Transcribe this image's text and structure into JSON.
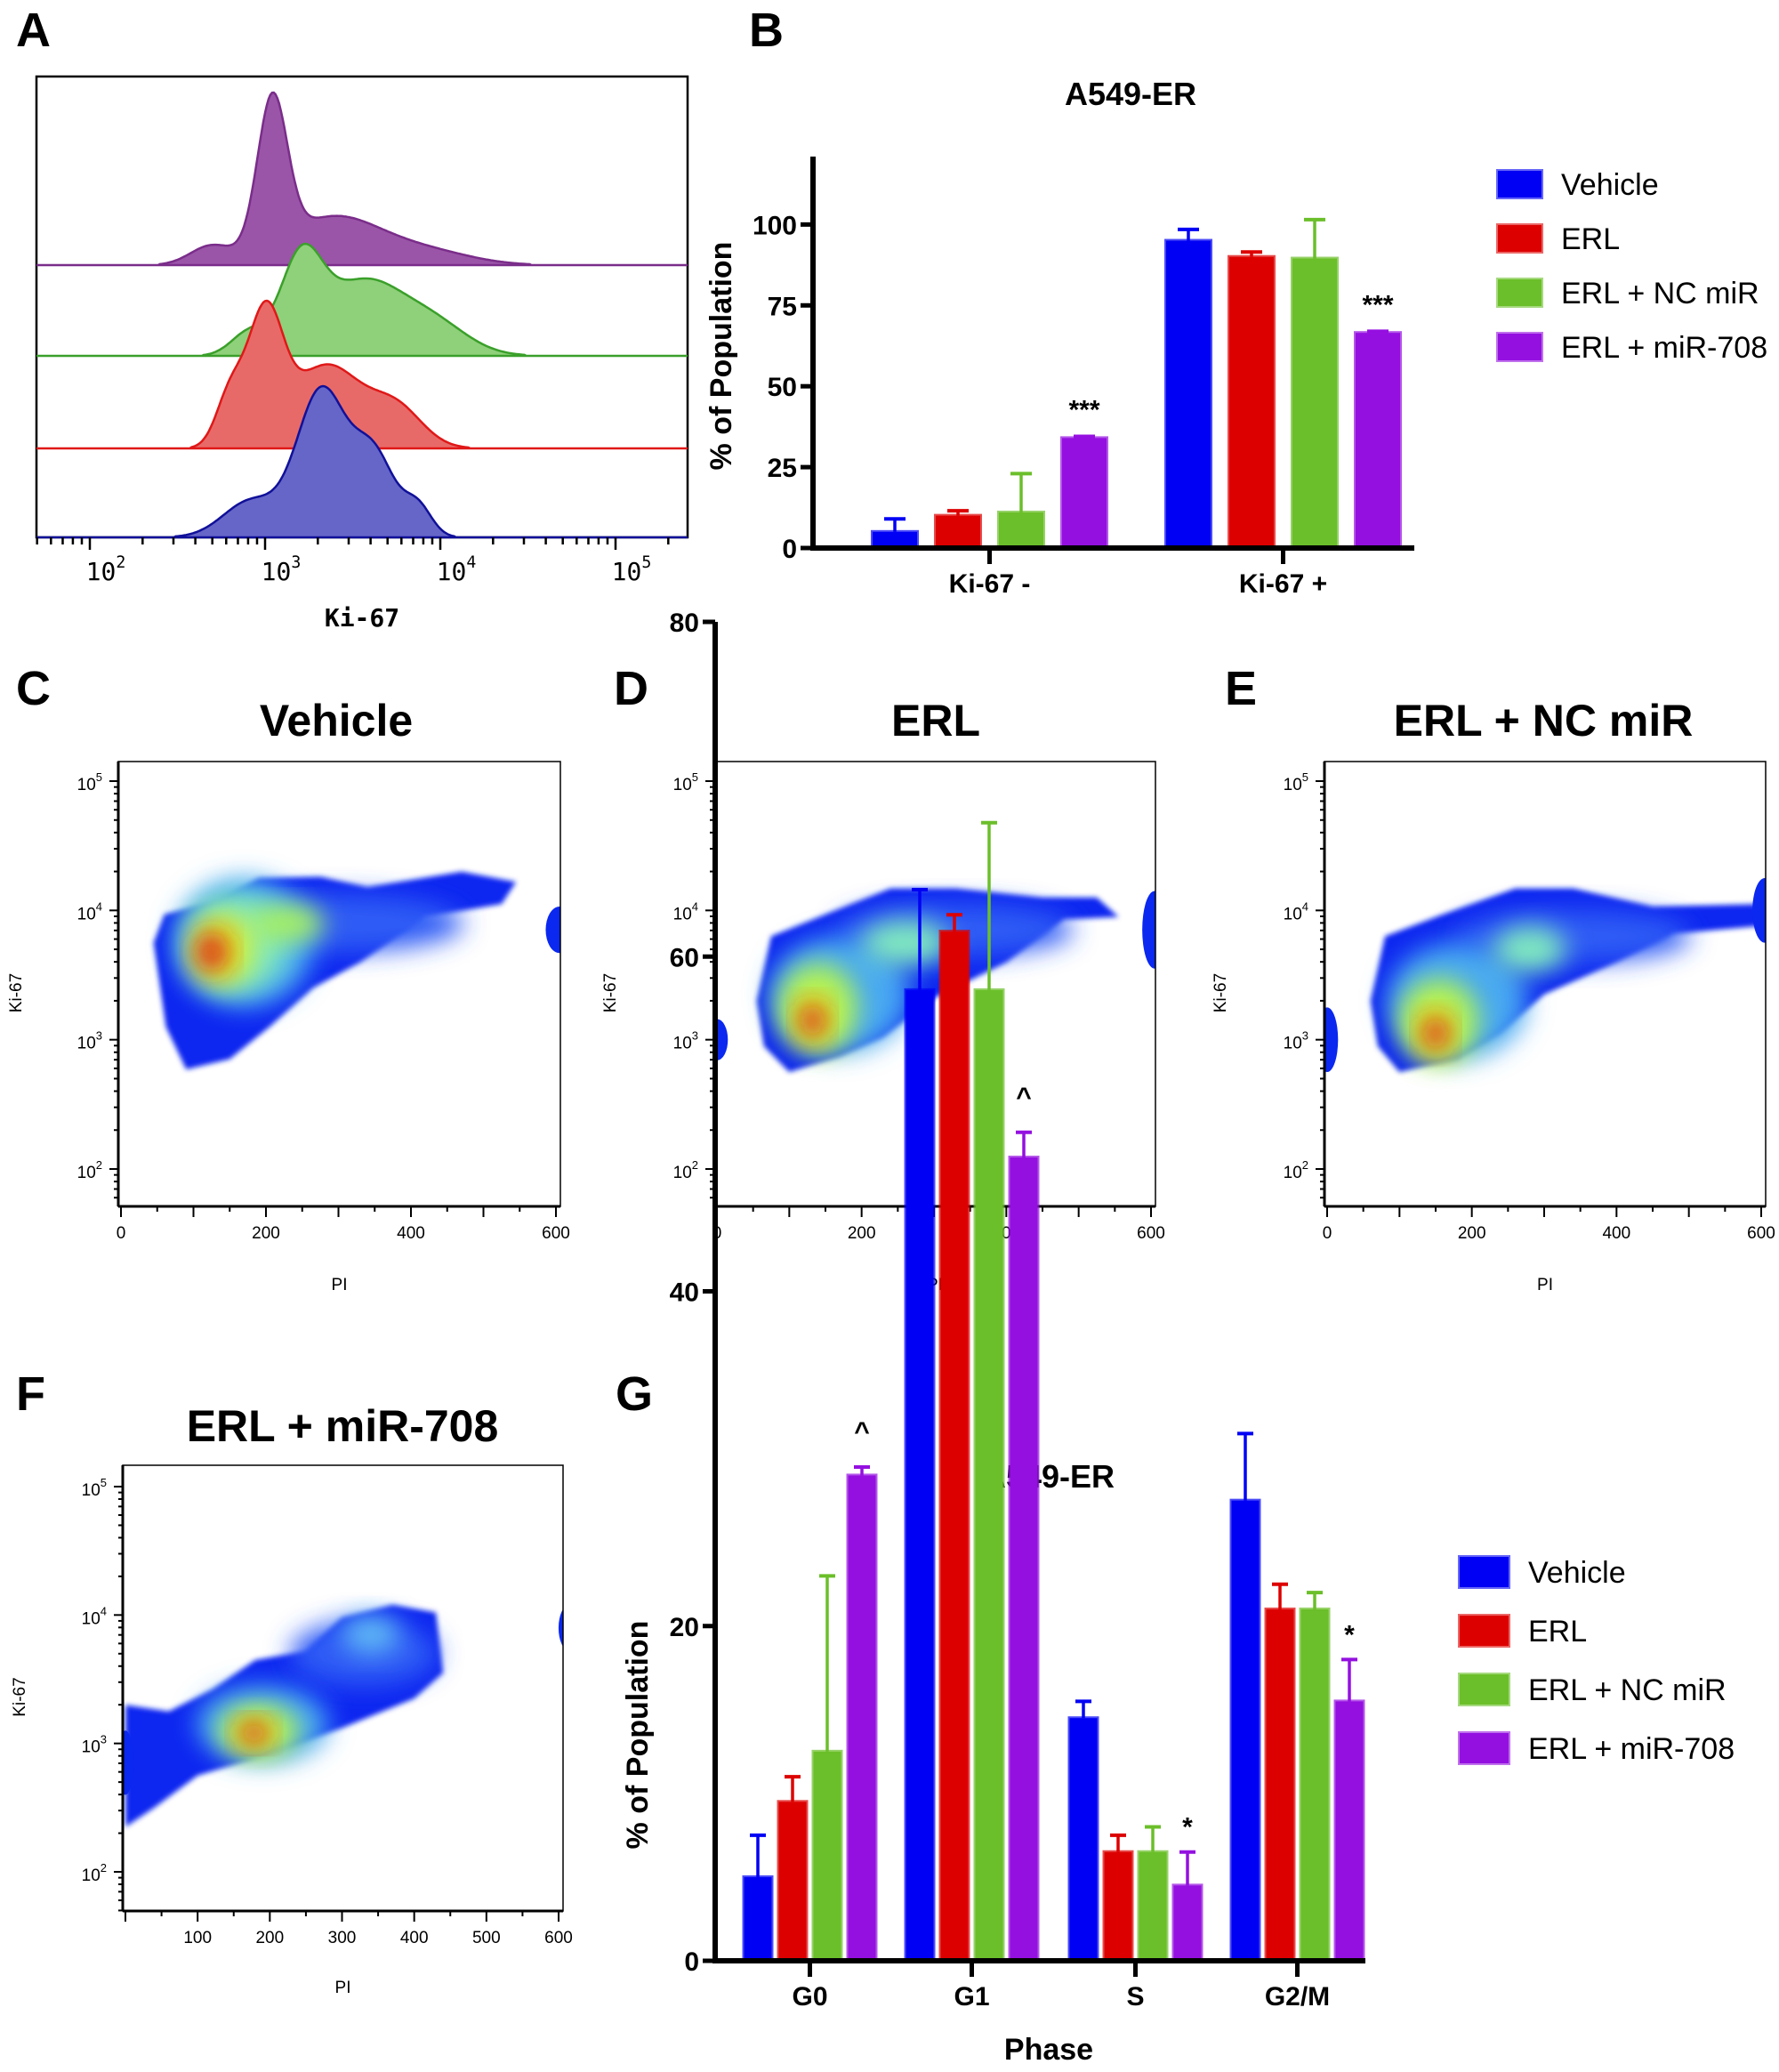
{
  "panel_letters": {
    "A": "A",
    "B": "B",
    "C": "C",
    "D": "D",
    "E": "E",
    "F": "F",
    "G": "G"
  },
  "chart_data": [
    {
      "id": "A",
      "type": "histogram",
      "xlabel": "Ki-67",
      "x_scale": "log",
      "x_ticks": [
        {
          "base": "10",
          "exp": "2"
        },
        {
          "base": "10",
          "exp": "3"
        },
        {
          "base": "10",
          "exp": "4"
        },
        {
          "base": "10",
          "exp": "5"
        }
      ],
      "layout": "stacked offset histograms",
      "series": [
        {
          "color": "#9a55a8",
          "stroke": "#7a2d8a",
          "mode": 1100
        },
        {
          "color": "#8fd07a",
          "stroke": "#3aa02a",
          "mode": 1600
        },
        {
          "color": "#e86a68",
          "stroke": "#e01818",
          "mode": 1000
        },
        {
          "color": "#6666c8",
          "stroke": "#10109a",
          "mode": 2100
        }
      ]
    },
    {
      "id": "B",
      "type": "bar",
      "title": "A549-ER",
      "ylabel": "% of Population",
      "ylim": [
        0,
        110
      ],
      "y_ticks": [
        "0",
        "25",
        "50",
        "75",
        "100"
      ],
      "categories": [
        "Ki-67 -",
        "Ki-67 +"
      ],
      "series": [
        {
          "name": "Vehicle",
          "color": "#0000f5",
          "values": [
            5,
            95
          ],
          "error_upper": [
            9,
            98.5
          ]
        },
        {
          "name": "ERL",
          "color": "#dd0000",
          "values": [
            10,
            90
          ],
          "error_upper": [
            11.5,
            91.5
          ]
        },
        {
          "name": "ERL + NC miR",
          "color": "#6bbf2a",
          "values": [
            11,
            89.5
          ],
          "error_upper": [
            23,
            101.5
          ]
        },
        {
          "name": "ERL + miR-708",
          "color": "#9410e0",
          "values": [
            34,
            66.5
          ],
          "error_upper": [
            34.5,
            67
          ]
        }
      ],
      "annotations": [
        {
          "category": "Ki-67 -",
          "series": "ERL + miR-708",
          "text": "***"
        },
        {
          "category": "Ki-67 +",
          "series": "ERL + miR-708",
          "text": "***"
        }
      ],
      "legend": "right"
    },
    {
      "id": "C",
      "type": "density",
      "title": "Vehicle",
      "xlabel": "PI",
      "ylabel": "Ki-67",
      "x_ticks": [
        "0",
        "200",
        "400",
        "600"
      ],
      "y_scale": "log",
      "y_ticks": [
        {
          "base": "10",
          "exp": "2"
        },
        {
          "base": "10",
          "exp": "3"
        },
        {
          "base": "10",
          "exp": "4"
        },
        {
          "base": "10",
          "exp": "5"
        }
      ]
    },
    {
      "id": "D",
      "type": "density",
      "title": "ERL",
      "xlabel": "PI",
      "ylabel": "Ki-67",
      "x_ticks": [
        "0",
        "200",
        "400",
        "600"
      ],
      "y_scale": "log",
      "y_ticks": [
        {
          "base": "10",
          "exp": "2"
        },
        {
          "base": "10",
          "exp": "3"
        },
        {
          "base": "10",
          "exp": "4"
        },
        {
          "base": "10",
          "exp": "5"
        }
      ]
    },
    {
      "id": "E",
      "type": "density",
      "title": "ERL + NC miR",
      "xlabel": "PI",
      "ylabel": "Ki-67",
      "x_ticks": [
        "0",
        "200",
        "400",
        "600"
      ],
      "y_scale": "log",
      "y_ticks": [
        {
          "base": "10",
          "exp": "2"
        },
        {
          "base": "10",
          "exp": "3"
        },
        {
          "base": "10",
          "exp": "4"
        },
        {
          "base": "10",
          "exp": "5"
        }
      ]
    },
    {
      "id": "F",
      "type": "density",
      "title": "ERL + miR-708",
      "xlabel": "PI",
      "ylabel": "Ki-67",
      "x_ticks": [
        "100",
        "200",
        "300",
        "400",
        "500",
        "600"
      ],
      "y_scale": "log",
      "y_ticks": [
        {
          "base": "10",
          "exp": "2"
        },
        {
          "base": "10",
          "exp": "3"
        },
        {
          "base": "10",
          "exp": "4"
        },
        {
          "base": "10",
          "exp": "5"
        }
      ]
    },
    {
      "id": "G",
      "type": "bar",
      "title": "A549-ER",
      "xlabel": "Phase",
      "ylabel": "% of Population",
      "ylim": [
        0,
        80
      ],
      "y_ticks": [
        "0",
        "20",
        "40",
        "60",
        "80"
      ],
      "categories": [
        "G0",
        "G1",
        "S",
        "G2/M"
      ],
      "series": [
        {
          "name": "Vehicle",
          "color": "#0000f5",
          "values": [
            5,
            58,
            14.5,
            27.5
          ],
          "error_upper": [
            7.5,
            64,
            15.5,
            31.5
          ]
        },
        {
          "name": "ERL",
          "color": "#dd0000",
          "values": [
            9.5,
            61.5,
            6.5,
            21
          ],
          "error_upper": [
            11,
            62.5,
            7.5,
            22.5
          ]
        },
        {
          "name": "ERL + NC miR",
          "color": "#6bbf2a",
          "values": [
            12.5,
            58,
            6.5,
            21
          ],
          "error_upper": [
            23,
            68,
            8,
            22
          ]
        },
        {
          "name": "ERL + miR-708",
          "color": "#9410e0",
          "values": [
            29,
            48,
            4.5,
            15.5
          ],
          "error_upper": [
            29.5,
            49.5,
            6.5,
            18
          ]
        }
      ],
      "annotations": [
        {
          "category": "G0",
          "series": "ERL + miR-708",
          "text": "^"
        },
        {
          "category": "G1",
          "series": "ERL + miR-708",
          "text": "^"
        },
        {
          "category": "S",
          "series": "ERL + miR-708",
          "text": "*"
        },
        {
          "category": "G2/M",
          "series": "ERL + miR-708",
          "text": "*"
        }
      ],
      "legend": "right"
    }
  ]
}
